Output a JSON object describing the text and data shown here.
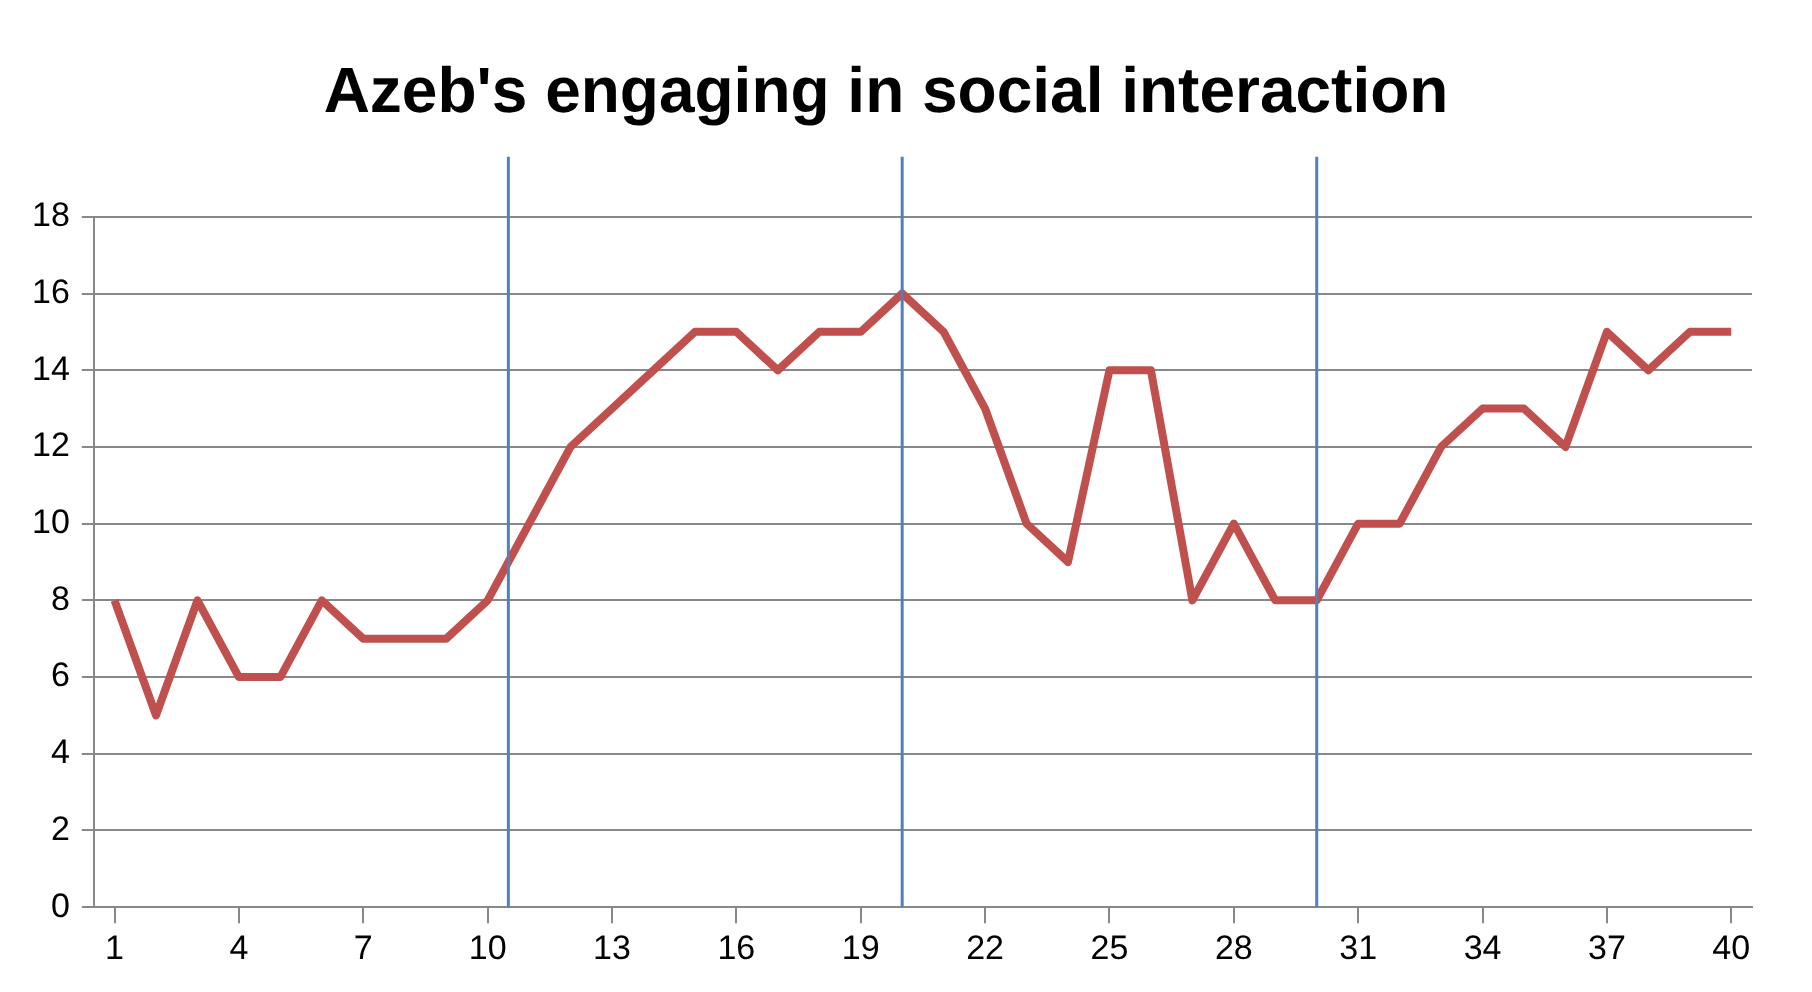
{
  "chart_data": {
    "type": "line",
    "title": "Azeb's engaging in social interaction",
    "x": [
      1,
      2,
      3,
      4,
      5,
      6,
      7,
      8,
      9,
      10,
      11,
      12,
      13,
      14,
      15,
      16,
      17,
      18,
      19,
      20,
      21,
      22,
      23,
      24,
      25,
      26,
      27,
      28,
      29,
      30,
      31,
      32,
      33,
      34,
      35,
      36,
      37,
      38,
      39,
      40
    ],
    "series": [
      {
        "color": "#c0504d",
        "values": [
          8,
          5,
          8,
          6,
          6,
          8,
          7,
          7,
          7,
          8,
          10,
          12,
          13,
          14,
          15,
          15,
          14,
          15,
          15,
          16,
          15,
          13,
          10,
          9,
          14,
          14,
          8,
          10,
          8,
          8,
          10,
          10,
          12,
          13,
          13,
          12,
          15,
          14,
          15,
          15
        ]
      }
    ],
    "xlim": [
      0.5,
      40.5
    ],
    "xticks": [
      1,
      4,
      7,
      10,
      13,
      16,
      19,
      22,
      25,
      28,
      31,
      34,
      37,
      40
    ],
    "ylim": [
      0,
      18
    ],
    "yticks": [
      0,
      2,
      4,
      6,
      8,
      10,
      12,
      14,
      16,
      18
    ],
    "ref_lines": [
      {
        "axis": "x",
        "value": 10.5,
        "color": "#4f81bd"
      },
      {
        "axis": "x",
        "value": 20,
        "color": "#4f81bd"
      },
      {
        "axis": "x",
        "value": 30,
        "color": "#4f81bd"
      }
    ],
    "grid": "y",
    "legend": false,
    "marker": "none",
    "line_style": "solid"
  }
}
